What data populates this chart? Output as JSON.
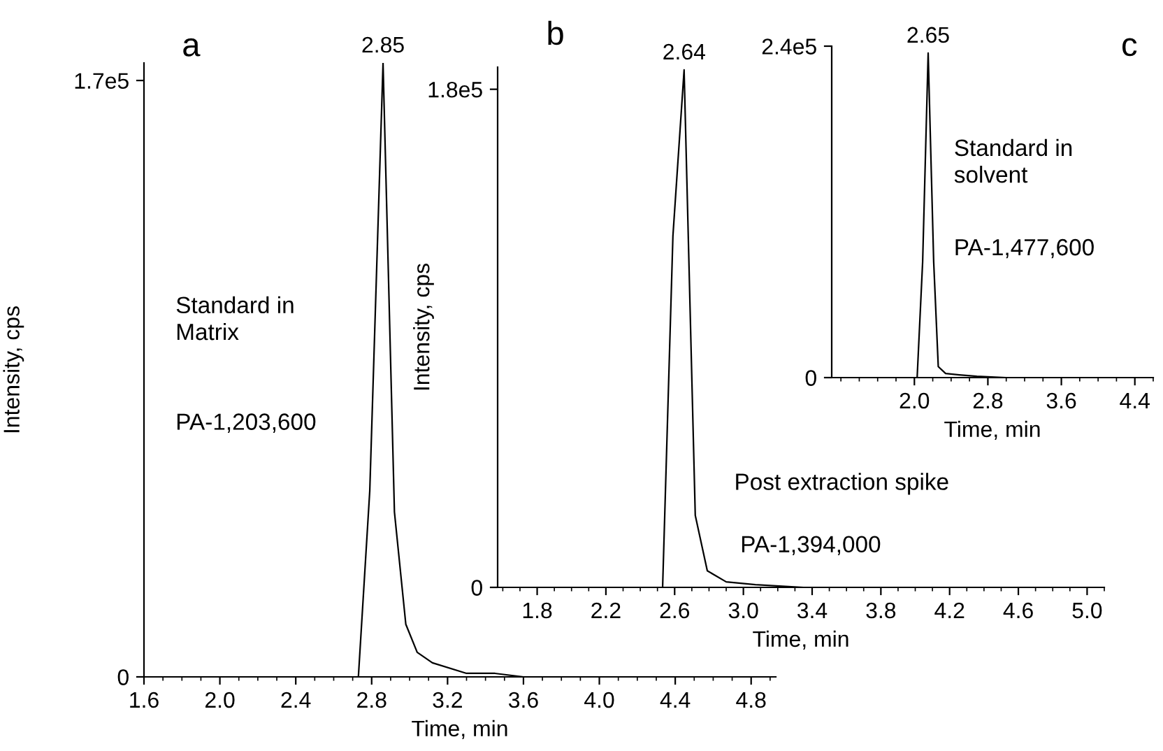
{
  "chart_data": [
    {
      "type": "line",
      "title": "a",
      "xlabel": "Time, min",
      "ylabel": "Intensity, cps",
      "xlim": [
        1.6,
        4.93
      ],
      "ylim": [
        0,
        175000
      ],
      "xticks": [
        1.6,
        {
          "value": 2,
          "label": "2.0"
        },
        2.4,
        2.8,
        3.2,
        3.6,
        {
          "value": 4,
          "label": "4.0"
        },
        4.4,
        4.8
      ],
      "yticks": [
        0,
        {
          "value": 170000,
          "label": "1.7e5"
        }
      ],
      "grid": false,
      "legend": false,
      "marker": "none",
      "line_style": "solid",
      "series": [
        {
          "color": "#000000",
          "x": [
            1.6,
            2.73,
            2.79,
            2.86,
            2.92,
            2.98,
            3.04,
            3.12,
            3.3,
            3.45,
            3.6,
            4.0,
            4.9
          ],
          "values": [
            0,
            0,
            53000,
            175000,
            47000,
            15000,
            7000,
            4000,
            1000,
            1000,
            0,
            0,
            0
          ]
        }
      ],
      "annotations": [
        {
          "text": "2.85",
          "x": 2.86,
          "y": 175000
        },
        "Standard in\nMatrix",
        "PA-1,203,600"
      ]
    },
    {
      "type": "line",
      "title": "b",
      "xlabel": "Time, min",
      "ylabel": "Intensity, cps",
      "xlim": [
        1.57,
        5.1
      ],
      "ylim": [
        0,
        188000
      ],
      "xticks": [
        1.8,
        2.2,
        2.6,
        {
          "value": 3,
          "label": "3.0"
        },
        3.4,
        3.8,
        4.2,
        4.6,
        {
          "value": 5,
          "label": "5.0"
        }
      ],
      "yticks": [
        0,
        {
          "value": 180000,
          "label": "1.8e5"
        }
      ],
      "grid": false,
      "legend": false,
      "marker": "none",
      "line_style": "solid",
      "series": [
        {
          "color": "#000000",
          "x": [
            1.57,
            2.53,
            2.59,
            2.655,
            2.72,
            2.79,
            2.9,
            3.07,
            3.35,
            3.6,
            5.1
          ],
          "values": [
            0,
            0,
            127000,
            187000,
            26000,
            6000,
            2000,
            1000,
            0,
            0,
            0
          ]
        }
      ],
      "annotations": [
        {
          "text": "2.64",
          "x": 2.655,
          "y": 187000
        },
        "Post extraction spike",
        "PA-1,394,000"
      ]
    },
    {
      "type": "line",
      "title": "c",
      "xlabel": "Time, min",
      "xlim": [
        1.1,
        4.6
      ],
      "ylim": [
        0,
        240000
      ],
      "xticks": [
        {
          "value": 2,
          "label": "2.0"
        },
        2.8,
        3.6,
        4.4
      ],
      "yticks": [
        0,
        {
          "value": 240000,
          "label": "2.4e5"
        }
      ],
      "grid": false,
      "legend": false,
      "marker": "none",
      "line_style": "solid",
      "series": [
        {
          "color": "#000000",
          "x": [
            1.1,
            2.03,
            2.09,
            2.15,
            2.21,
            2.26,
            2.34,
            2.49,
            2.68,
            3.0,
            4.6
          ],
          "values": [
            0,
            0,
            84000,
            235000,
            84000,
            8000,
            3000,
            2000,
            1000,
            0,
            0
          ]
        }
      ],
      "annotations": [
        {
          "text": "2.65",
          "x": 2.15,
          "y": 235000
        },
        "Standard in\nsolvent",
        "PA-1,477,600"
      ]
    }
  ]
}
